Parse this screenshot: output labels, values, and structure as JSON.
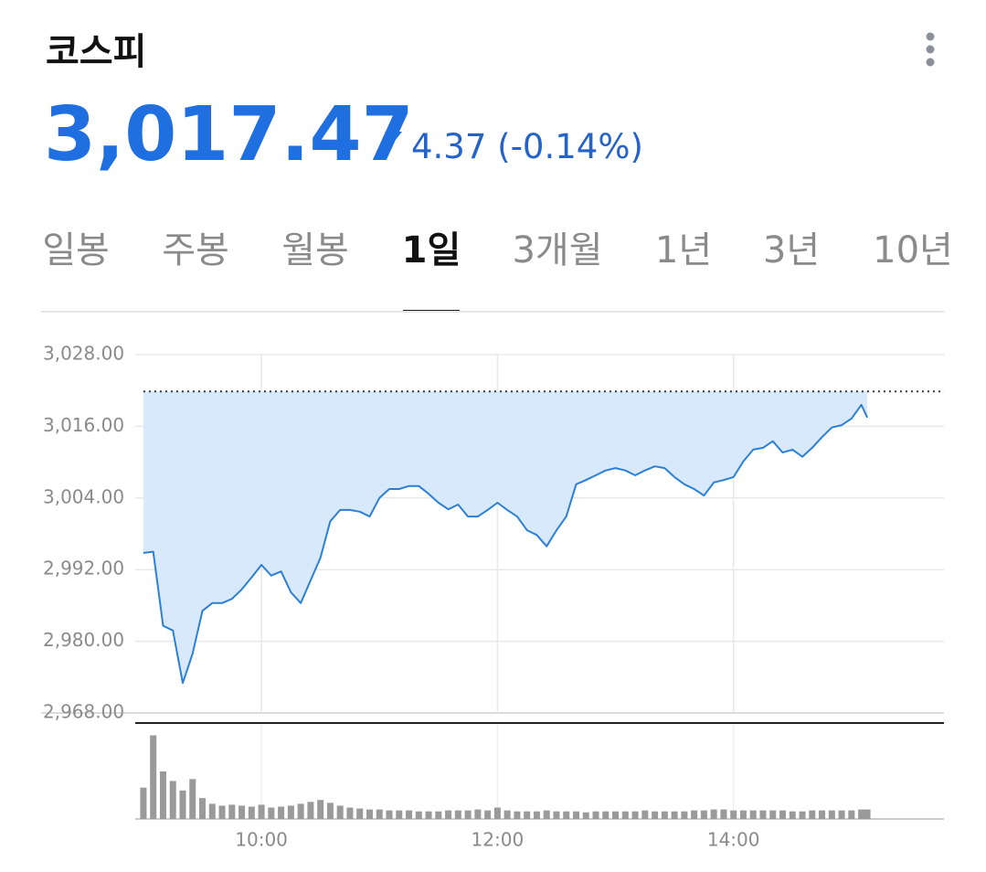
{
  "header": {
    "title": "코스피",
    "price": "3,017.47",
    "change": "4.37 (-0.14%)"
  },
  "tabs": {
    "items": [
      "일봉",
      "주봉",
      "월봉",
      "1일",
      "3개월",
      "1년",
      "3년",
      "10년"
    ],
    "selected": 3
  },
  "chart_data": {
    "type": "line",
    "x": [
      540,
      545,
      550,
      555,
      560,
      565,
      570,
      575,
      580,
      585,
      590,
      595,
      600,
      605,
      610,
      615,
      620,
      625,
      630,
      635,
      640,
      645,
      650,
      655,
      660,
      665,
      670,
      675,
      680,
      685,
      690,
      695,
      700,
      705,
      710,
      715,
      720,
      725,
      730,
      735,
      740,
      745,
      750,
      755,
      760,
      765,
      770,
      775,
      780,
      785,
      790,
      795,
      800,
      805,
      810,
      815,
      820,
      825,
      830,
      835,
      840,
      845,
      850,
      855,
      860,
      865,
      870,
      875,
      880,
      885,
      890,
      895,
      900,
      905,
      908
    ],
    "values": [
      2994.8,
      2995.0,
      2982.6,
      2981.8,
      2973.0,
      2977.9,
      2985.1,
      2986.4,
      2986.4,
      2987.1,
      2988.7,
      2990.7,
      2992.8,
      2991.0,
      2991.7,
      2988.2,
      2986.4,
      2990.2,
      2994.0,
      3000.1,
      3002.0,
      3002.0,
      3001.7,
      3000.9,
      3004.0,
      3005.5,
      3005.5,
      3006.0,
      3006.0,
      3004.7,
      3003.2,
      3002.1,
      3002.9,
      3000.9,
      3000.9,
      3002.0,
      3003.2,
      3002.0,
      3000.9,
      2998.6,
      2997.8,
      2995.9,
      2998.6,
      3000.9,
      3006.3,
      3007.0,
      3007.8,
      3008.6,
      3009.0,
      3008.6,
      3007.8,
      3008.6,
      3009.3,
      3009.0,
      3007.5,
      3006.3,
      3005.5,
      3004.4,
      3006.6,
      3007.0,
      3007.5,
      3010.1,
      3012.1,
      3012.4,
      3013.5,
      3011.6,
      3012.1,
      3010.9,
      3012.4,
      3014.2,
      3015.8,
      3016.2,
      3017.3,
      3019.6,
      3017.47
    ],
    "color": "#2b7fd6",
    "fill": "#d8e9fc",
    "baseline": 3021.84,
    "volume": [
      33,
      88,
      50,
      40,
      30,
      42,
      22,
      16,
      14,
      15,
      14,
      13,
      15,
      12,
      13,
      14,
      16,
      18,
      20,
      17,
      14,
      12,
      11,
      10,
      10,
      9,
      9,
      9,
      8,
      8,
      8,
      9,
      9,
      9,
      10,
      9,
      12,
      9,
      8,
      8,
      8,
      9,
      8,
      8,
      8,
      7,
      8,
      8,
      8,
      8,
      8,
      9,
      8,
      8,
      8,
      8,
      9,
      9,
      10,
      10,
      9,
      9,
      9,
      9,
      9,
      9,
      8,
      8,
      9,
      9,
      9,
      9,
      9,
      10,
      10
    ],
    "volume_color": "#9a9a9a",
    "vlim": [
      0,
      100
    ],
    "xlim": [
      488,
      947
    ],
    "xticks": [
      {
        "value": 600,
        "label": "10:00"
      },
      {
        "value": 720,
        "label": "12:00"
      },
      {
        "value": 840,
        "label": "14:00"
      }
    ],
    "ylim": [
      2968,
      3028
    ],
    "yticks": [
      {
        "value": 2968,
        "label": "2,968.00"
      },
      {
        "value": 2980,
        "label": "2,980.00"
      },
      {
        "value": 2992,
        "label": "2,992.00"
      },
      {
        "value": 3004,
        "label": "3,004.00"
      },
      {
        "value": 3016,
        "label": "3,016.00"
      },
      {
        "value": 3028,
        "label": "3,028.00"
      }
    ],
    "grid": true
  }
}
